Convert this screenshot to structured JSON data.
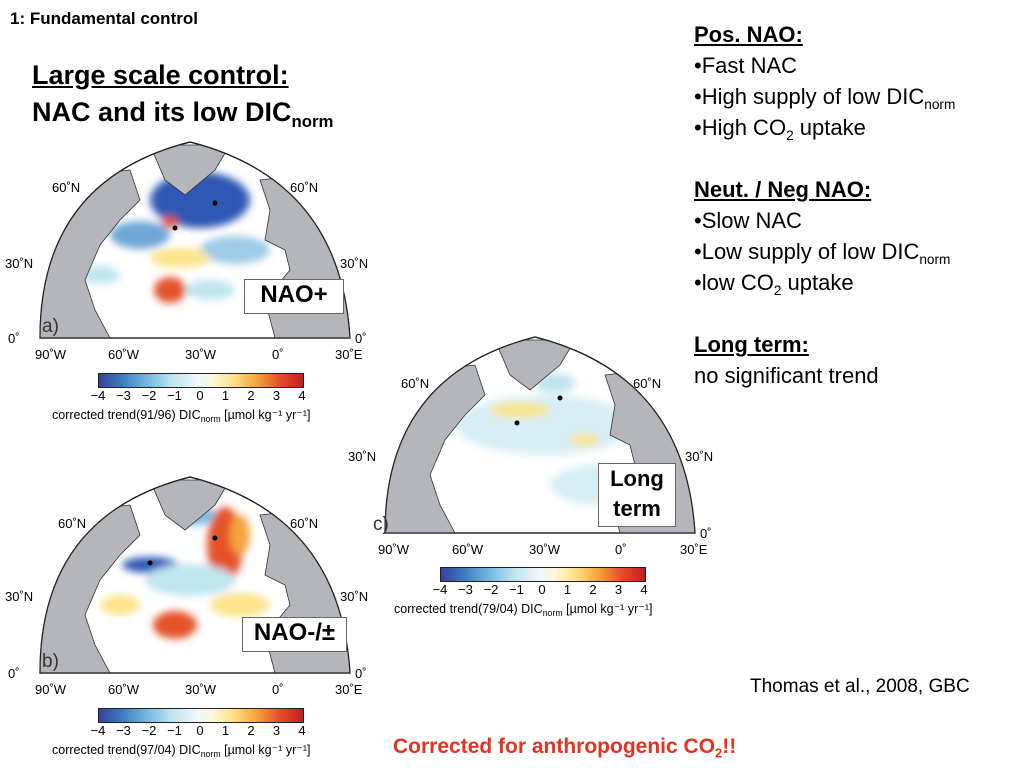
{
  "header": {
    "section_label": "1: Fundamental control",
    "title_line1": "Large scale control:",
    "title_line2_main": "NAC and its low DIC",
    "title_line2_sub": "norm"
  },
  "panels": {
    "a": {
      "letter": "a)",
      "tag": "NAO+",
      "lat_labels": [
        "60˚N",
        "30˚N",
        "0˚"
      ],
      "lat_labels_right": [
        "60˚N",
        "30˚N",
        "0˚"
      ],
      "lon_labels": [
        "90˚W",
        "60˚W",
        "30˚W",
        "0˚",
        "30˚E"
      ],
      "colorbar_ticks": [
        "−4",
        "−3",
        "−2",
        "−1",
        "0",
        "1",
        "2",
        "3",
        "4"
      ],
      "caption_prefix": "corrected trend(91/96) DIC",
      "caption_sub": "norm",
      "caption_suffix": " [µmol kg⁻¹ yr⁻¹]"
    },
    "b": {
      "letter": "b)",
      "tag": "NAO-/±",
      "lat_labels": [
        "60˚N",
        "30˚N",
        "0˚"
      ],
      "lat_labels_right": [
        "60˚N",
        "30˚N",
        "0˚"
      ],
      "lon_labels": [
        "90˚W",
        "60˚W",
        "30˚W",
        "0˚",
        "30˚E"
      ],
      "colorbar_ticks": [
        "−4",
        "−3",
        "−2",
        "−1",
        "0",
        "1",
        "2",
        "3",
        "4"
      ],
      "caption_prefix": "corrected trend(97/04) DIC",
      "caption_sub": "norm",
      "caption_suffix": " [µmol kg⁻¹ yr⁻¹]"
    },
    "c": {
      "letter": "c)",
      "tag_line1": "Long",
      "tag_line2": "term",
      "lat_labels": [
        "60˚N",
        "30˚N"
      ],
      "lat_labels_right": [
        "60˚N",
        "30˚N",
        "0˚"
      ],
      "lon_labels": [
        "90˚W",
        "60˚W",
        "30˚W",
        "0˚",
        "30˚E"
      ],
      "colorbar_ticks": [
        "−4",
        "−3",
        "−2",
        "−1",
        "0",
        "1",
        "2",
        "3",
        "4"
      ],
      "caption_prefix": "corrected trend(79/04) DIC",
      "caption_sub": "norm",
      "caption_suffix": " [µmol kg⁻¹ yr⁻¹]"
    }
  },
  "notes": {
    "pos_head": "Pos. NAO:",
    "pos_1": "•Fast NAC",
    "pos_2_main": "•High supply of low DIC",
    "pos_2_sub": "norm",
    "pos_3_pre": "•High CO",
    "pos_3_sub": "2",
    "pos_3_post": " uptake",
    "neg_head": "Neut. / Neg NAO:",
    "neg_1": "•Slow NAC",
    "neg_2_main": "•Low supply of low DIC",
    "neg_2_sub": "norm",
    "neg_3_pre": "•low CO",
    "neg_3_sub": "2",
    "neg_3_post": " uptake",
    "long_head": "Long term:",
    "long_1": "no significant trend"
  },
  "citation": "Thomas et al., 2008, GBC",
  "footer": {
    "pre": "Corrected for anthropogenic CO",
    "sub": "2",
    "post": "!!"
  },
  "colors": {
    "footer": "#e8321f",
    "land": "#b4b6bb",
    "ocean_neutral": "#ffffff",
    "negative": "#2f59b3",
    "positive": "#e3532a"
  }
}
